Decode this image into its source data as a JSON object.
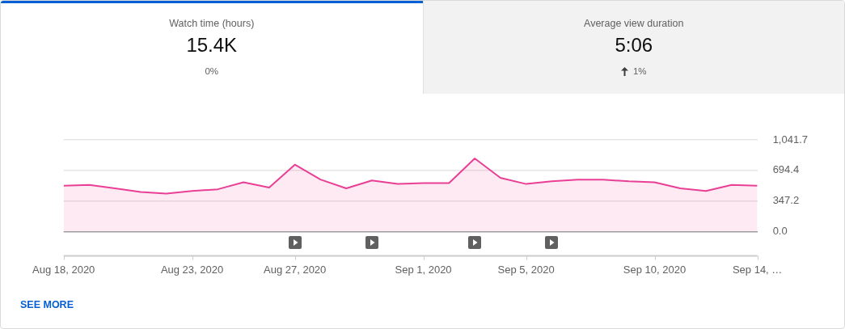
{
  "chart_data": [
    {
      "type": "other",
      "title": "Watch time (hours)",
      "annotations": [
        "15.4K",
        "0%"
      ]
    },
    {
      "type": "other",
      "title": "Average view duration",
      "annotations": [
        "5:06",
        "1%"
      ]
    },
    {
      "type": "area",
      "x": [
        "2020-08-18",
        "2020-08-19",
        "2020-08-20",
        "2020-08-21",
        "2020-08-22",
        "2020-08-23",
        "2020-08-24",
        "2020-08-25",
        "2020-08-26",
        "2020-08-27",
        "2020-08-28",
        "2020-08-29",
        "2020-08-30",
        "2020-08-31",
        "2020-09-01",
        "2020-09-02",
        "2020-09-03",
        "2020-09-04",
        "2020-09-05",
        "2020-09-06",
        "2020-09-07",
        "2020-09-08",
        "2020-09-09",
        "2020-09-10",
        "2020-09-11",
        "2020-09-12",
        "2020-09-13",
        "2020-09-14"
      ],
      "values": [
        520,
        530,
        490,
        450,
        430,
        460,
        480,
        560,
        500,
        760,
        590,
        490,
        580,
        540,
        550,
        550,
        830,
        610,
        540,
        570,
        590,
        590,
        570,
        560,
        490,
        460,
        530,
        520
      ],
      "color": "#e93f95",
      "xlim": [
        "2020-08-18",
        "2020-09-14"
      ],
      "xticks": [
        {
          "value": "2020-08-18",
          "label": "Aug 18, 2020"
        },
        {
          "value": "2020-08-23",
          "label": "Aug 23, 2020"
        },
        {
          "value": "2020-08-27",
          "label": "Aug 27, 2020"
        },
        {
          "value": "2020-09-01",
          "label": "Sep 1, 2020"
        },
        {
          "value": "2020-09-05",
          "label": "Sep 5, 2020"
        },
        {
          "value": "2020-09-10",
          "label": "Sep 10, 2020"
        },
        {
          "value": "2020-09-14",
          "label": "Sep 14, …"
        }
      ],
      "ylim": [
        0,
        1041.7
      ],
      "yticks": [
        {
          "value": 0,
          "label": "0.0"
        },
        347.2,
        694.4,
        {
          "value": 1041.7,
          "label": "1,041.7"
        }
      ],
      "grid": "y",
      "annotations": [
        "SEE MORE"
      ]
    }
  ]
}
